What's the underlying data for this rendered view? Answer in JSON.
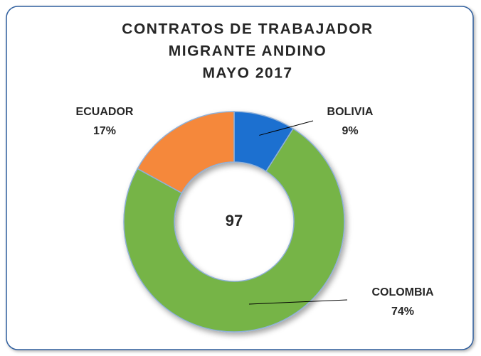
{
  "chart_data": {
    "type": "donut",
    "title": [
      "CONTRATOS DE TRABAJADOR",
      "MIGRANTE ANDINO",
      "MAYO 2017"
    ],
    "center_text": "97",
    "categories": [
      "BOLIVIA",
      "COLOMBIA",
      "ECUADOR"
    ],
    "values": [
      9,
      74,
      17
    ],
    "value_labels": [
      "9%",
      "74%",
      "17%"
    ],
    "colors": [
      "#1f6fd0",
      "#76b447",
      "#f5883a"
    ]
  }
}
